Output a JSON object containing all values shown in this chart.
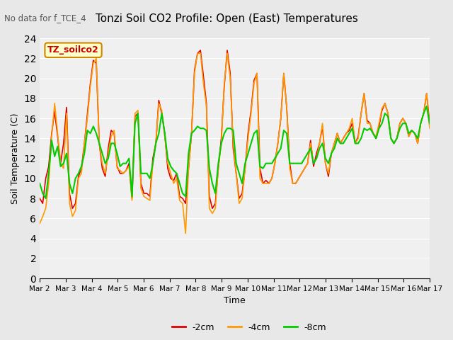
{
  "title": "Tonzi Soil CO2 Profile: Open (East) Temperatures",
  "subtitle": "No data for f_TCE_4",
  "ylabel": "Soil Temperature (C)",
  "xlabel": "Time",
  "legend_label": "TZ_soilco2",
  "series_labels": [
    "-2cm",
    "-4cm",
    "-8cm"
  ],
  "series_colors": [
    "#dd0000",
    "#ff9900",
    "#00cc00"
  ],
  "ylim": [
    0,
    24
  ],
  "yticks": [
    0,
    2,
    4,
    6,
    8,
    10,
    12,
    14,
    16,
    18,
    20,
    22,
    24
  ],
  "bg_color": "#e8e8e8",
  "plot_bg_color": "#f0f0f0",
  "x_tick_labels": [
    "Mar 2",
    "Mar 3",
    "Mar 4",
    "Mar 5",
    "Mar 6",
    "Mar 7",
    "Mar 8",
    "Mar 9",
    "Mar 10",
    "Mar 11",
    "Mar 12",
    "Mar 13",
    "Mar 14",
    "Mar 15",
    "Mar 16",
    "Mar 17"
  ],
  "data_2cm": [
    8.0,
    7.5,
    10.0,
    11.2,
    14.5,
    16.7,
    14.2,
    11.5,
    13.5,
    17.1,
    8.5,
    7.0,
    7.5,
    10.2,
    11.0,
    13.5,
    16.4,
    19.5,
    21.8,
    21.5,
    13.5,
    11.0,
    10.2,
    13.0,
    14.8,
    14.5,
    11.2,
    10.5,
    10.5,
    10.8,
    11.5,
    8.0,
    16.2,
    16.5,
    9.5,
    8.5,
    8.5,
    8.2,
    12.0,
    13.5,
    17.8,
    16.5,
    14.5,
    11.0,
    10.0,
    9.8,
    10.5,
    8.2,
    8.0,
    7.5,
    11.0,
    14.5,
    20.8,
    22.5,
    22.8,
    20.2,
    17.5,
    8.2,
    7.0,
    7.5,
    11.0,
    14.0,
    19.2,
    22.8,
    20.5,
    13.0,
    10.5,
    8.0,
    8.5,
    11.0,
    14.5,
    16.8,
    19.8,
    20.5,
    11.0,
    9.5,
    9.8,
    9.5,
    10.0,
    11.5,
    13.5,
    16.0,
    20.5,
    17.0,
    11.5,
    9.5,
    9.5,
    10.0,
    10.5,
    11.0,
    11.5,
    13.8,
    11.2,
    12.5,
    13.5,
    15.2,
    11.5,
    10.2,
    12.5,
    13.5,
    14.5,
    13.5,
    14.0,
    14.5,
    14.8,
    15.5,
    13.5,
    14.2,
    16.5,
    18.5,
    15.8,
    15.5,
    14.5,
    14.0,
    15.2,
    16.8,
    17.5,
    16.5,
    14.0,
    13.5,
    14.0,
    15.5,
    16.0,
    15.5,
    14.2,
    14.8,
    14.5,
    13.5,
    15.5,
    16.5,
    18.5,
    15.5
  ],
  "data_4cm": [
    5.5,
    6.2,
    7.0,
    9.5,
    14.2,
    17.5,
    14.5,
    11.5,
    11.0,
    16.5,
    7.5,
    6.2,
    6.8,
    10.0,
    10.5,
    13.5,
    16.0,
    19.2,
    21.5,
    22.0,
    13.5,
    11.5,
    10.5,
    12.5,
    14.2,
    14.8,
    11.0,
    10.8,
    10.5,
    10.8,
    11.2,
    7.8,
    16.5,
    16.8,
    9.0,
    8.2,
    8.0,
    7.8,
    11.5,
    13.5,
    17.5,
    16.8,
    14.2,
    11.5,
    10.5,
    9.5,
    10.0,
    7.8,
    7.5,
    4.5,
    11.0,
    14.5,
    20.5,
    22.5,
    22.5,
    19.5,
    17.2,
    7.0,
    6.5,
    7.0,
    11.0,
    13.5,
    19.5,
    22.5,
    20.0,
    13.5,
    10.5,
    7.5,
    8.0,
    11.0,
    14.0,
    16.5,
    19.5,
    20.5,
    10.0,
    9.5,
    9.5,
    9.5,
    10.0,
    11.5,
    13.5,
    16.0,
    20.5,
    17.0,
    11.0,
    9.5,
    9.5,
    10.0,
    10.5,
    11.0,
    11.5,
    13.5,
    11.5,
    12.0,
    13.5,
    15.5,
    11.5,
    10.5,
    12.5,
    13.5,
    14.5,
    13.5,
    14.0,
    14.5,
    15.0,
    16.0,
    13.5,
    14.0,
    16.5,
    18.5,
    15.5,
    15.5,
    14.5,
    14.2,
    15.5,
    17.0,
    17.5,
    16.5,
    14.0,
    13.5,
    14.0,
    15.5,
    16.0,
    15.5,
    14.2,
    14.8,
    14.5,
    13.5,
    15.5,
    16.5,
    18.5,
    15.0
  ],
  "data_8cm": [
    9.5,
    8.5,
    8.0,
    10.5,
    13.8,
    12.2,
    13.2,
    11.2,
    11.5,
    12.5,
    9.5,
    8.5,
    10.0,
    10.5,
    11.2,
    12.5,
    14.8,
    14.5,
    15.2,
    14.5,
    13.5,
    12.5,
    11.5,
    12.0,
    13.5,
    13.5,
    12.5,
    11.2,
    11.5,
    11.5,
    12.0,
    8.2,
    15.5,
    16.5,
    10.5,
    10.5,
    10.5,
    10.0,
    11.5,
    13.5,
    14.5,
    16.5,
    14.5,
    12.0,
    11.2,
    10.8,
    10.5,
    9.5,
    8.5,
    8.2,
    12.5,
    14.5,
    14.8,
    15.2,
    15.0,
    15.0,
    14.8,
    11.0,
    9.5,
    8.5,
    11.5,
    13.5,
    14.5,
    15.0,
    15.0,
    14.8,
    11.5,
    10.5,
    9.5,
    11.5,
    12.5,
    13.5,
    14.5,
    14.8,
    11.2,
    11.0,
    11.5,
    11.5,
    11.5,
    12.0,
    12.5,
    13.0,
    14.8,
    14.5,
    11.5,
    11.5,
    11.5,
    11.5,
    11.5,
    12.0,
    12.5,
    13.0,
    11.5,
    12.0,
    13.0,
    13.5,
    12.0,
    11.5,
    12.5,
    13.0,
    14.0,
    13.5,
    13.5,
    14.0,
    14.5,
    15.0,
    13.5,
    13.5,
    14.0,
    15.0,
    14.8,
    15.0,
    14.5,
    14.0,
    15.0,
    15.5,
    16.5,
    16.2,
    14.0,
    13.5,
    14.0,
    15.0,
    15.5,
    15.5,
    14.5,
    14.8,
    14.5,
    14.0,
    15.5,
    16.5,
    17.2,
    15.5
  ]
}
